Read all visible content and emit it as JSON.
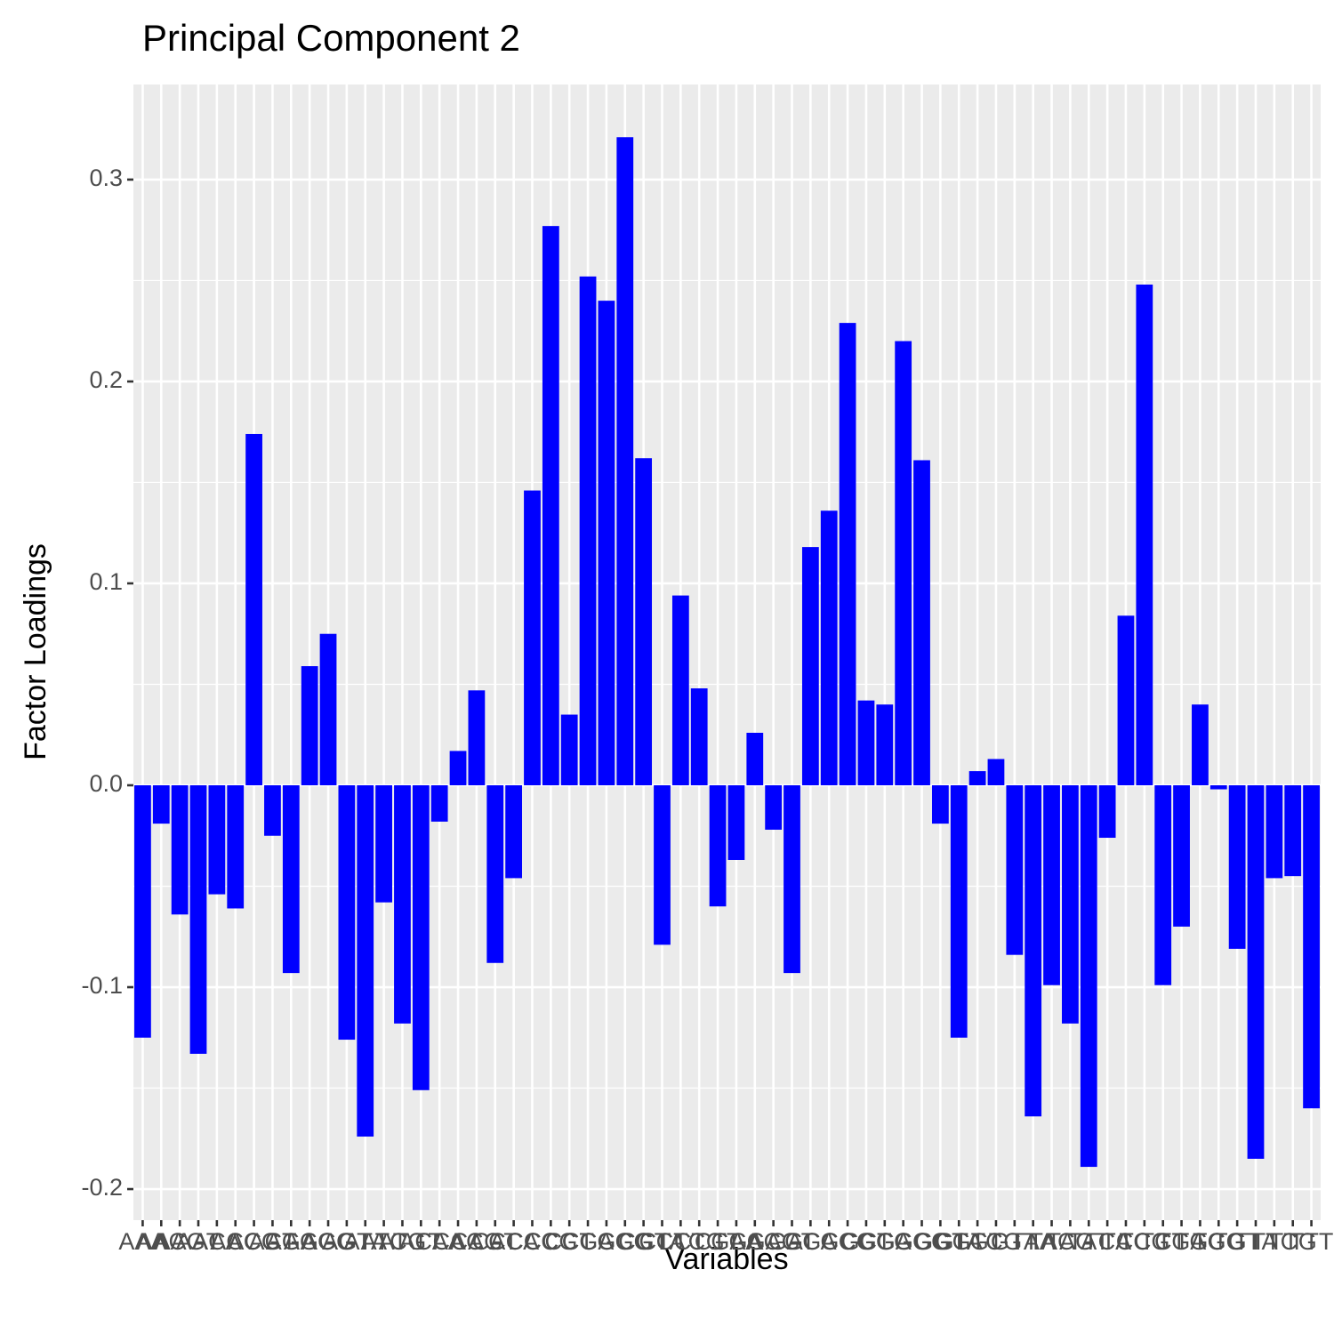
{
  "chart_data": {
    "type": "bar",
    "title": "Principal Component 2",
    "xlabel": "Variables",
    "ylabel": "Factor Loadings",
    "categories": [
      "AAA",
      "AAC",
      "AAG",
      "AAT",
      "ACA",
      "ACC",
      "ACG",
      "ACT",
      "AGA",
      "AGC",
      "AGG",
      "AGT",
      "ATA",
      "ATC",
      "ATG",
      "ATT",
      "CAA",
      "CAC",
      "CAG",
      "CAT",
      "CCA",
      "CCC",
      "CCG",
      "CCT",
      "CGA",
      "CGC",
      "CGG",
      "CGT",
      "CTA",
      "CTC",
      "CTG",
      "CTT",
      "GAA",
      "GAC",
      "GAG",
      "GAT",
      "GCA",
      "GCC",
      "GCG",
      "GCT",
      "GGA",
      "GGC",
      "GGG",
      "GGT",
      "GTA",
      "GTC",
      "GTG",
      "GTT",
      "TAA",
      "TAC",
      "TAG",
      "TAT",
      "TCA",
      "TCC",
      "TCG",
      "TCT",
      "TGA",
      "TGC",
      "TGG",
      "TGT",
      "TTA",
      "TTC",
      "TTG",
      "TTT"
    ],
    "values": [
      -0.125,
      -0.019,
      -0.064,
      -0.133,
      -0.054,
      -0.061,
      0.174,
      -0.025,
      -0.093,
      0.059,
      0.075,
      -0.126,
      -0.174,
      -0.058,
      -0.118,
      -0.151,
      -0.018,
      0.017,
      0.047,
      -0.088,
      -0.046,
      0.146,
      0.277,
      0.035,
      0.252,
      0.24,
      0.321,
      0.162,
      -0.079,
      0.094,
      0.048,
      -0.06,
      -0.037,
      0.026,
      -0.022,
      -0.093,
      0.118,
      0.136,
      0.229,
      0.042,
      0.04,
      0.22,
      0.161,
      -0.019,
      -0.125,
      0.007,
      0.013,
      -0.084,
      -0.164,
      -0.099,
      -0.118,
      -0.189,
      -0.026,
      0.084,
      0.248,
      -0.099,
      -0.07,
      0.04,
      -0.002,
      -0.081,
      -0.185,
      -0.046,
      -0.045,
      -0.16
    ],
    "color": "#0000ff",
    "ylim": [
      -0.2154,
      0.3471
    ],
    "yticks": [
      -0.2,
      -0.1,
      {
        "value": 0,
        "label": "0.0"
      },
      0.1,
      0.2,
      0.3
    ],
    "grid": true
  }
}
